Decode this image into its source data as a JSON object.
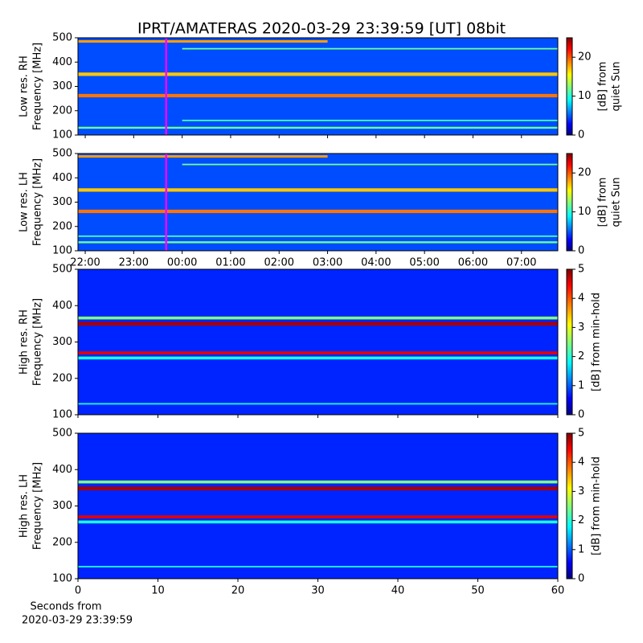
{
  "title": "IPRT/AMATERAS 2020-03-29 23:39:59 [UT]   08bit",
  "xlabel": [
    "Seconds from",
    "2020-03-29 23:39:59"
  ],
  "chart_data": [
    {
      "type": "spectrogram",
      "ylabel": [
        "Low res. RH",
        "Frequency [MHz]"
      ],
      "clabel": [
        "[dB] from",
        "quiet Sun"
      ],
      "xlim": [
        21.85,
        31.75
      ],
      "xticks": [
        {
          "value": 22,
          "label": "22:00"
        },
        {
          "value": 23,
          "label": "23:00"
        },
        {
          "value": 24,
          "label": "00:00"
        },
        {
          "value": 25,
          "label": "01:00"
        },
        {
          "value": 26,
          "label": "02:00"
        },
        {
          "value": 27,
          "label": "03:00"
        },
        {
          "value": 28,
          "label": "04:00"
        },
        {
          "value": 29,
          "label": "05:00"
        },
        {
          "value": 30,
          "label": "06:00"
        },
        {
          "value": 31,
          "label": "07:00"
        }
      ],
      "show_xticklabels": false,
      "ylim": [
        100,
        500
      ],
      "yticks": [
        100,
        200,
        300,
        400,
        500
      ],
      "clim": [
        0,
        25
      ],
      "cticks": [
        0,
        10,
        20
      ],
      "background": 5,
      "marker": {
        "x": 23.67,
        "color": "#ff00ff"
      },
      "bands": [
        {
          "freq": 485,
          "width": 10,
          "level": 18,
          "span": [
            21.85,
            27
          ]
        },
        {
          "freq": 455,
          "width": 6,
          "level": 12,
          "span": [
            24,
            31.75
          ]
        },
        {
          "freq": 350,
          "width": 14,
          "level": 17
        },
        {
          "freq": 262,
          "width": 14,
          "level": 19
        },
        {
          "freq": 160,
          "width": 6,
          "level": 11,
          "span": [
            24,
            31.75
          ]
        },
        {
          "freq": 130,
          "width": 8,
          "level": 12
        }
      ]
    },
    {
      "type": "spectrogram",
      "ylabel": [
        "Low res. LH",
        "Frequency [MHz]"
      ],
      "clabel": [
        "[dB] from",
        "quiet Sun"
      ],
      "xlim": [
        21.85,
        31.75
      ],
      "xticks": [
        {
          "value": 22,
          "label": "22:00"
        },
        {
          "value": 23,
          "label": "23:00"
        },
        {
          "value": 24,
          "label": "00:00"
        },
        {
          "value": 25,
          "label": "01:00"
        },
        {
          "value": 26,
          "label": "02:00"
        },
        {
          "value": 27,
          "label": "03:00"
        },
        {
          "value": 28,
          "label": "04:00"
        },
        {
          "value": 29,
          "label": "05:00"
        },
        {
          "value": 30,
          "label": "06:00"
        },
        {
          "value": 31,
          "label": "07:00"
        }
      ],
      "show_xticklabels": true,
      "ylim": [
        100,
        500
      ],
      "yticks": [
        100,
        200,
        300,
        400,
        500
      ],
      "clim": [
        0,
        25
      ],
      "cticks": [
        0,
        10,
        20
      ],
      "background": 5,
      "marker": {
        "x": 23.67,
        "color": "#ff00ff"
      },
      "bands": [
        {
          "freq": 488,
          "width": 10,
          "level": 18,
          "span": [
            21.85,
            27
          ]
        },
        {
          "freq": 455,
          "width": 6,
          "level": 12,
          "span": [
            24,
            31.75
          ]
        },
        {
          "freq": 350,
          "width": 14,
          "level": 17
        },
        {
          "freq": 262,
          "width": 14,
          "level": 19
        },
        {
          "freq": 160,
          "width": 6,
          "level": 11
        },
        {
          "freq": 135,
          "width": 8,
          "level": 12
        }
      ]
    },
    {
      "type": "spectrogram",
      "ylabel": [
        "High res. RH",
        "Frequency [MHz]"
      ],
      "clabel": [
        "[dB] from min-hold"
      ],
      "xlim": [
        0,
        60
      ],
      "xticks": [
        0,
        10,
        20,
        30,
        40,
        50,
        60
      ],
      "show_xticklabels": false,
      "ylim": [
        100,
        500
      ],
      "yticks": [
        100,
        200,
        300,
        400,
        500
      ],
      "clim": [
        0,
        5
      ],
      "cticks": [
        0,
        1,
        2,
        3,
        4,
        5
      ],
      "background": 0.8,
      "bands": [
        {
          "freq": 366,
          "width": 8,
          "level": 2.5
        },
        {
          "freq": 350,
          "width": 10,
          "level": 4.8
        },
        {
          "freq": 270,
          "width": 8,
          "level": 4.5
        },
        {
          "freq": 256,
          "width": 8,
          "level": 2
        },
        {
          "freq": 130,
          "width": 4,
          "level": 2
        }
      ]
    },
    {
      "type": "spectrogram",
      "ylabel": [
        "High res. LH",
        "Frequency [MHz]"
      ],
      "clabel": [
        "[dB] from min-hold"
      ],
      "xlim": [
        0,
        60
      ],
      "xticks": [
        0,
        10,
        20,
        30,
        40,
        50,
        60
      ],
      "show_xticklabels": true,
      "ylim": [
        100,
        500
      ],
      "yticks": [
        100,
        200,
        300,
        400,
        500
      ],
      "clim": [
        0,
        5
      ],
      "cticks": [
        0,
        1,
        2,
        3,
        4,
        5
      ],
      "background": 0.8,
      "bands": [
        {
          "freq": 366,
          "width": 8,
          "level": 2.5
        },
        {
          "freq": 348,
          "width": 10,
          "level": 4.8
        },
        {
          "freq": 270,
          "width": 8,
          "level": 4.5
        },
        {
          "freq": 256,
          "width": 8,
          "level": 2
        },
        {
          "freq": 133,
          "width": 4,
          "level": 2
        }
      ]
    }
  ]
}
